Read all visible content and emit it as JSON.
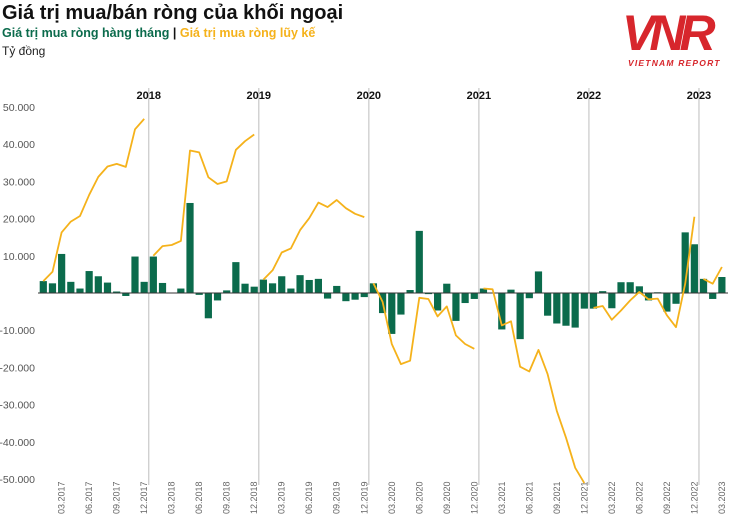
{
  "header": {
    "title": "Giá trị mua/bán ròng của khối ngoại",
    "legend_monthly": "Giá trị mua ròng hàng tháng",
    "legend_separator": "|",
    "legend_cumulative": "Giá trị mua ròng lũy kế",
    "unit": "Tỷ đồng"
  },
  "logo": {
    "text": "VNR",
    "subtext": "VIETNAM REPORT",
    "color": "#d7262c"
  },
  "colors": {
    "monthly": "#0b6b4c",
    "cumulative": "#f5b21b",
    "monthly_text": "#0b6b4c",
    "cumulative_text": "#f5b21b"
  },
  "chart_data": {
    "type": "bar+line",
    "ylim": [
      -50000,
      50000
    ],
    "yticks": [
      "50.000",
      "40.000",
      "30.000",
      "20.000",
      "10.000",
      "0",
      "-10.000",
      "-20.000",
      "-30.000",
      "-40.000",
      "-50.000"
    ],
    "ytick_values": [
      50000,
      40000,
      30000,
      20000,
      10000,
      0,
      -10000,
      -20000,
      -30000,
      -40000,
      -50000
    ],
    "years": [
      "2018",
      "2019",
      "2020",
      "2021",
      "2022",
      "2023"
    ],
    "xtick_labels": [
      "03.2017",
      "06.2017",
      "09.2017",
      "12.2017",
      "03.2018",
      "06.2018",
      "09.2018",
      "12.2018",
      "03.2019",
      "06.2019",
      "09.2019",
      "12.2019",
      "03.2020",
      "06.2020",
      "09.2020",
      "12.2020",
      "03.2021",
      "06.2021",
      "09.2021",
      "12.2021",
      "03.2022",
      "06.2022",
      "09.2022",
      "12.2022",
      "03.2023"
    ],
    "start_month": "01.2017",
    "series": [
      {
        "name": "Giá trị mua ròng hàng tháng",
        "type": "bar",
        "values": [
          3200,
          2600,
          10500,
          3000,
          1200,
          5900,
          4500,
          2800,
          400,
          -800,
          9800,
          3000,
          9800,
          2700,
          0,
          1200,
          24200,
          -500,
          -6800,
          -2000,
          700,
          8300,
          2500,
          1700,
          3600,
          2600,
          4500,
          1200,
          4800,
          3500,
          3800,
          -1500,
          1900,
          -2200,
          -1800,
          -1100,
          2600,
          -5400,
          -11000,
          -5800,
          800,
          16700,
          -300,
          -4700,
          2500,
          -7500,
          -2700,
          -1600,
          1200,
          0,
          -9800,
          900,
          -12400,
          -1400,
          5800,
          -6100,
          -8200,
          -8800,
          -9300,
          -4200,
          -4200,
          500,
          -4100,
          2900,
          2900,
          1800,
          -2000,
          200,
          -5000,
          -2900,
          16300,
          13100,
          3800,
          -1600,
          4300
        ]
      },
      {
        "name": "Giá trị mua ròng lũy kế",
        "type": "line",
        "values": [
          3200,
          5700,
          16300,
          19200,
          20700,
          26400,
          31200,
          34000,
          34700,
          33900,
          44000,
          46800,
          10000,
          12600,
          12900,
          14000,
          38300,
          37800,
          31100,
          29300,
          30000,
          38500,
          40800,
          42600,
          3600,
          6100,
          10900,
          12000,
          16900,
          20100,
          24300,
          23100,
          25000,
          22800,
          21300,
          20400,
          2600,
          -2400,
          -13700,
          -19100,
          -18200,
          -1300,
          -1600,
          -6300,
          -3600,
          -11400,
          -13700,
          -15000,
          1200,
          1000,
          -8700,
          -7600,
          -19800,
          -21100,
          -15300,
          -21800,
          -31700,
          -38900,
          -47000,
          -51100,
          -4000,
          -3500,
          -7200,
          -4700,
          -2000,
          300,
          -1700,
          -1500,
          -6000,
          -9200,
          2500,
          20500,
          3800,
          2500,
          7000
        ]
      }
    ]
  }
}
